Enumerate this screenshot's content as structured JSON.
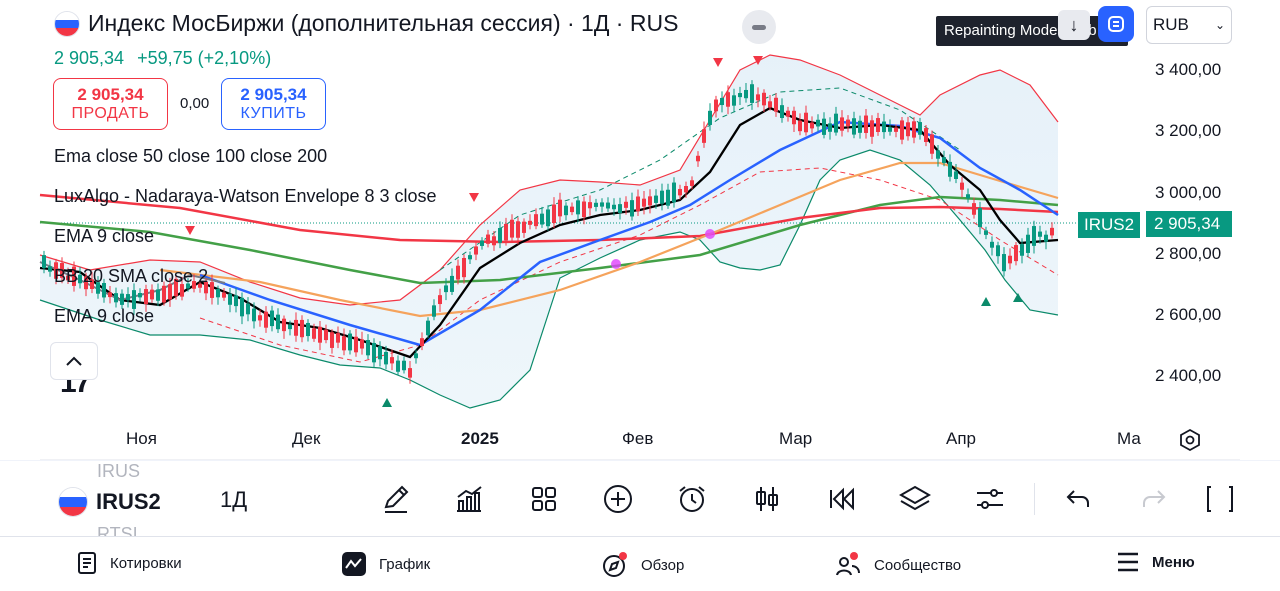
{
  "header": {
    "title": "Индекс МосБиржи (дополнительная сессия) · 1Д · RUS",
    "last_price": "2 905,34",
    "change": "+59,75 (+2,10%)"
  },
  "trade": {
    "sell_price": "2 905,34",
    "sell_label": "ПРОДАТЬ",
    "spread": "0,00",
    "buy_price": "2 905,34",
    "buy_label": "КУПИТЬ"
  },
  "indicators": [
    "Ema close 50 close 100 close 200",
    "LuxAlgo - Nadaraya-Watson Envelope 8 3 close",
    "EMA 9 close",
    "BB 20 SMA close 2",
    "EMA 9 close"
  ],
  "tooltip": "Repainting Mode Enab",
  "currency": "RUB",
  "symbol_tag": "IRUS2",
  "price_tag": "2 905,34",
  "y_axis": [
    "3 400,00",
    "3 200,00",
    "3 000,00",
    "2 800,00",
    "2 600,00",
    "2 400,00"
  ],
  "x_axis": [
    "Ноя",
    "Дек",
    "2025",
    "Фев",
    "Мар",
    "Апр",
    "Ма"
  ],
  "colors": {
    "up": "#089981",
    "down": "#f23645",
    "ema9": "#000000",
    "ema50": "#2962ff",
    "ema100": "#f5a35c",
    "ema200": "#43a047",
    "envelope": "#f23645",
    "bb": "#0b8a6a",
    "accent": "#2962ff"
  },
  "toolbar": {
    "prev_symbol": "IRUS",
    "symbol": "IRUS2",
    "next_symbol": "RTSI",
    "interval": "1Д",
    "tools": [
      "pencil-icon",
      "chart-type-icon",
      "templates-icon",
      "add-icon",
      "alert-clock-icon",
      "candles-icon",
      "replay-icon",
      "layers-icon",
      "settings-sliders-icon",
      "undo-icon",
      "redo-icon",
      "fullscreen-icon"
    ]
  },
  "nav": {
    "quotes": "Котировки",
    "chart": "График",
    "overview": "Обзор",
    "community": "Сообщество",
    "menu": "Меню"
  }
}
